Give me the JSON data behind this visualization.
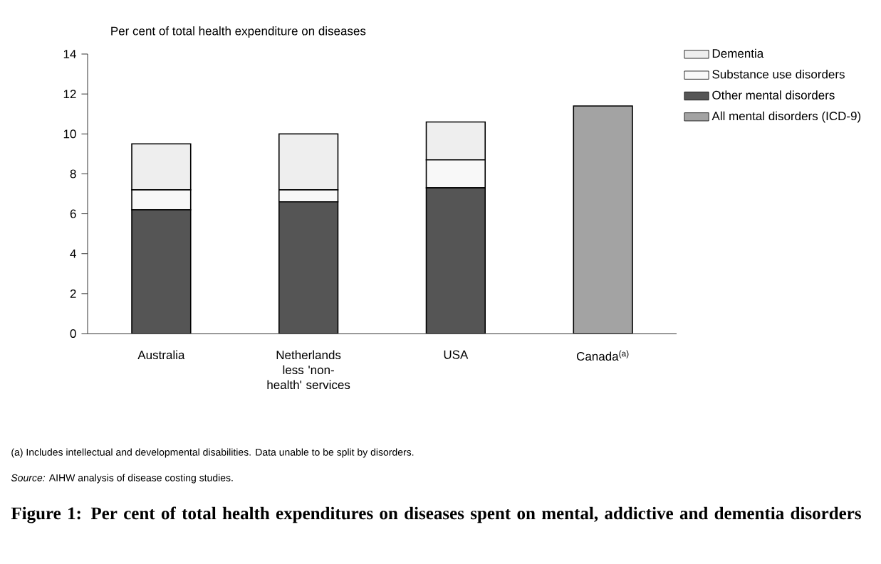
{
  "chart_data": {
    "type": "bar",
    "stacked": true,
    "title": "**Figure 1: Per cent of total health expenditures on diseases spent on mental, addictive and dementia disorders**",
    "ylabel": "Per cent of total health expenditure on diseases",
    "categories": [
      "Australia",
      "Netherlands less 'non-health' services",
      "USA",
      "Canada$^{(a)}$"
    ],
    "series": [
      {
        "name": "Other mental disorders",
        "color": "#555555",
        "values": [
          6.2,
          6.6,
          7.3,
          null
        ]
      },
      {
        "name": "Substance use disorders",
        "color": "#f8f8f8",
        "values": [
          1.0,
          0.6,
          1.4,
          null
        ]
      },
      {
        "name": "Dementia",
        "color": "#eeeeee",
        "values": [
          2.3,
          2.8,
          1.9,
          null
        ]
      },
      {
        "name": "All mental disorders (ICD-9)",
        "color": "#a3a3a3",
        "values": [
          null,
          null,
          null,
          11.4
        ]
      }
    ],
    "ylim": [
      0,
      14
    ],
    "yticks": [
      0,
      2,
      4,
      6,
      8,
      10,
      12,
      14
    ],
    "legend": "right",
    "annotations": [
      "(a) Includes intellectual and developmental disabilities. Data unable to be split by disorders.",
      "*Source:* AIHW analysis of disease costing studies."
    ]
  }
}
